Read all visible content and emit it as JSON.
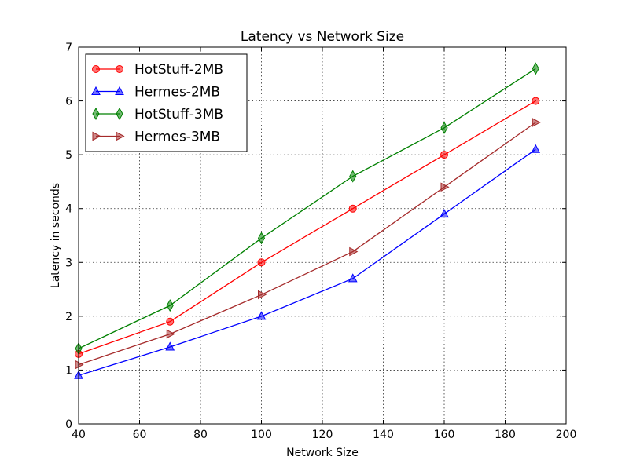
{
  "chart_data": {
    "type": "line",
    "title": "Latency vs Network Size",
    "xlabel": "Network Size",
    "ylabel": "Latency in seconds",
    "xlim": [
      40,
      200
    ],
    "ylim": [
      0,
      7
    ],
    "xticks": [
      40,
      60,
      80,
      100,
      120,
      140,
      160,
      180,
      200
    ],
    "yticks": [
      0,
      1,
      2,
      3,
      4,
      5,
      6,
      7
    ],
    "grid": true,
    "legend_position": "top-left",
    "series": [
      {
        "name": "HotStuff-2MB",
        "color": "#ff0000",
        "marker": "circle",
        "x": [
          40,
          70,
          100,
          130,
          160,
          190
        ],
        "y": [
          1.3,
          1.9,
          3.0,
          4.0,
          5.0,
          6.0
        ]
      },
      {
        "name": "Hermes-2MB",
        "color": "#0000ff",
        "marker": "triangle-up",
        "x": [
          40,
          70,
          100,
          130,
          160,
          190
        ],
        "y": [
          0.9,
          1.43,
          2.0,
          2.7,
          3.9,
          5.1
        ]
      },
      {
        "name": "HotStuff-3MB",
        "color": "#008000",
        "marker": "diamond",
        "x": [
          40,
          70,
          100,
          130,
          160,
          190
        ],
        "y": [
          1.4,
          2.2,
          3.45,
          4.6,
          5.5,
          6.6
        ]
      },
      {
        "name": "Hermes-3MB",
        "color": "#a52a2a",
        "marker": "triangle-right",
        "x": [
          40,
          70,
          100,
          130,
          160,
          190
        ],
        "y": [
          1.1,
          1.67,
          2.4,
          3.2,
          4.4,
          5.6
        ]
      }
    ]
  }
}
